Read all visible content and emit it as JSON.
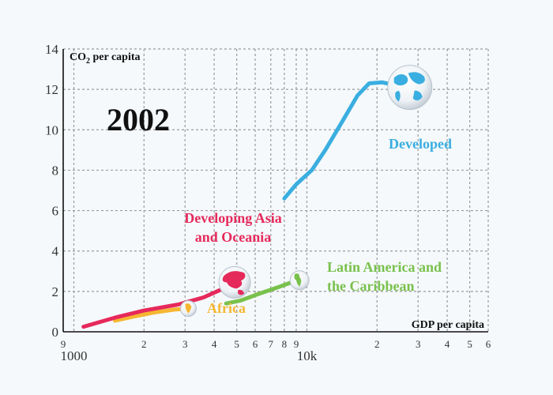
{
  "chart_data": {
    "type": "line",
    "year_label": "2002",
    "xlabel": "GDP per capita",
    "ylabel": "CO",
    "ylabel_sub": "2",
    "ylabel_rest": " per capita",
    "x_scale": "log",
    "xlim": [
      900,
      60000
    ],
    "ylim": [
      0,
      14
    ],
    "y_ticks": [
      0,
      2,
      4,
      6,
      8,
      10,
      12,
      14
    ],
    "x_major_ticks": [
      {
        "value": 1000,
        "label": "1000"
      },
      {
        "value": 10000,
        "label": "10k"
      }
    ],
    "x_minor_ticks": [
      {
        "value": 900,
        "label": "9"
      },
      {
        "value": 2000,
        "label": "2"
      },
      {
        "value": 3000,
        "label": "3"
      },
      {
        "value": 4000,
        "label": "4"
      },
      {
        "value": 5000,
        "label": "5"
      },
      {
        "value": 6000,
        "label": "6"
      },
      {
        "value": 7000,
        "label": "7"
      },
      {
        "value": 8000,
        "label": "8"
      },
      {
        "value": 9000,
        "label": "9"
      },
      {
        "value": 20000,
        "label": "2"
      },
      {
        "value": 30000,
        "label": "3"
      },
      {
        "value": 40000,
        "label": "4"
      },
      {
        "value": 50000,
        "label": "5"
      },
      {
        "value": 60000,
        "label": "6"
      }
    ],
    "grid": true,
    "series": [
      {
        "name_lines": [
          "Developed"
        ],
        "color": "#3aaee0",
        "icon": "globe-icon",
        "points": [
          {
            "x": 8000,
            "y": 6.6
          },
          {
            "x": 9000,
            "y": 7.3
          },
          {
            "x": 10500,
            "y": 8.0
          },
          {
            "x": 12000,
            "y": 9.0
          },
          {
            "x": 14000,
            "y": 10.3
          },
          {
            "x": 16500,
            "y": 11.7
          },
          {
            "x": 18500,
            "y": 12.3
          },
          {
            "x": 21000,
            "y": 12.35
          },
          {
            "x": 24000,
            "y": 12.2
          },
          {
            "x": 27000,
            "y": 12.1
          }
        ]
      },
      {
        "name_lines": [
          "Developing Asia",
          "and Oceania"
        ],
        "color": "#e6295b",
        "icon": "asia-oceania-icon",
        "points": [
          {
            "x": 1100,
            "y": 0.25
          },
          {
            "x": 1500,
            "y": 0.7
          },
          {
            "x": 2000,
            "y": 1.05
          },
          {
            "x": 2800,
            "y": 1.35
          },
          {
            "x": 3600,
            "y": 1.7
          },
          {
            "x": 4300,
            "y": 2.1
          },
          {
            "x": 4900,
            "y": 2.45
          }
        ]
      },
      {
        "name_lines": [
          "Africa"
        ],
        "color": "#f5b731",
        "icon": "africa-icon",
        "points": [
          {
            "x": 1500,
            "y": 0.55
          },
          {
            "x": 1800,
            "y": 0.75
          },
          {
            "x": 2200,
            "y": 0.95
          },
          {
            "x": 2700,
            "y": 1.1
          },
          {
            "x": 3100,
            "y": 1.15
          }
        ]
      },
      {
        "name_lines": [
          "Latin America and",
          "the Caribbean"
        ],
        "color": "#79c14c",
        "icon": "americas-icon",
        "points": [
          {
            "x": 4500,
            "y": 1.4
          },
          {
            "x": 5200,
            "y": 1.55
          },
          {
            "x": 6300,
            "y": 1.9
          },
          {
            "x": 7500,
            "y": 2.2
          },
          {
            "x": 8600,
            "y": 2.45
          },
          {
            "x": 9300,
            "y": 2.55
          }
        ]
      }
    ]
  }
}
